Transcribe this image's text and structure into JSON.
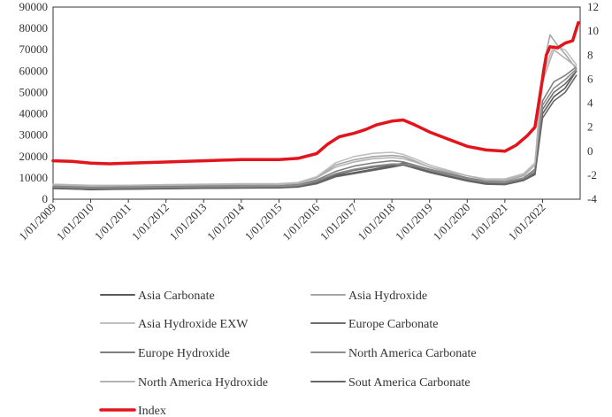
{
  "chart_data": {
    "type": "line",
    "title": "",
    "xlabel": "",
    "ylabel": "",
    "y2label": "",
    "x_ticks": [
      "1/01/2009",
      "1/01/2010",
      "1/01/2011",
      "1/01/2012",
      "1/01/2013",
      "1/01/2014",
      "1/01/2015",
      "1/01/2016",
      "1/01/2017",
      "1/01/2018",
      "1/01/2019",
      "1/01/2020",
      "1/01/2021",
      "1/01/2022"
    ],
    "y_left_ticks": [
      "0",
      "10000",
      "20000",
      "30000",
      "40000",
      "50000",
      "60000",
      "70000",
      "80000",
      "90000"
    ],
    "y_right_ticks": [
      "-4",
      "-2",
      "0",
      "2",
      "4",
      "6",
      "8",
      "10",
      "12"
    ],
    "ylim": [
      0,
      90000
    ],
    "y2lim": [
      -4,
      12
    ],
    "xlim": [
      2009.0,
      2023.0
    ],
    "grid": false,
    "legend_position": "bottom",
    "colors": {
      "index": "#e3141b",
      "axis": "#333333",
      "asia_carbonate": "#595959",
      "asia_hydroxide": "#a6a6a6",
      "asia_hydroxide_exw": "#bfbfbf",
      "europe_carbonate": "#6e6e6e",
      "europe_hydroxide": "#7f7f7f",
      "na_carbonate": "#8c8c8c",
      "na_hydroxide": "#b3b3b3",
      "sa_carbonate": "#666666"
    },
    "series": [
      {
        "name": "Asia Carbonate",
        "axis": "left",
        "color_key": "asia_carbonate",
        "x": [
          2009.0,
          2010.0,
          2011.0,
          2012.0,
          2013.0,
          2014.0,
          2015.0,
          2015.5,
          2016.0,
          2016.5,
          2017.0,
          2017.5,
          2018.0,
          2018.3,
          2018.6,
          2019.0,
          2019.5,
          2020.0,
          2020.5,
          2021.0,
          2021.5,
          2021.8,
          2022.0,
          2022.3,
          2022.6,
          2022.9
        ],
        "y": [
          5200,
          4500,
          4800,
          5000,
          5200,
          5300,
          5400,
          5800,
          7500,
          11000,
          12500,
          14000,
          15500,
          17000,
          15000,
          13000,
          11000,
          9000,
          7500,
          7000,
          9000,
          12000,
          40000,
          48000,
          52000,
          60000
        ]
      },
      {
        "name": "Asia Hydroxide",
        "axis": "left",
        "color_key": "asia_hydroxide",
        "x": [
          2009.0,
          2010.0,
          2011.0,
          2012.0,
          2013.0,
          2014.0,
          2015.0,
          2015.5,
          2016.0,
          2016.5,
          2017.0,
          2017.5,
          2018.0,
          2018.3,
          2018.6,
          2019.0,
          2019.5,
          2020.0,
          2020.5,
          2021.0,
          2021.5,
          2021.8,
          2022.0,
          2022.2,
          2022.4,
          2022.6,
          2022.9
        ],
        "y": [
          6500,
          6000,
          6200,
          6400,
          6600,
          6800,
          7000,
          7500,
          10000,
          16000,
          18500,
          20000,
          20500,
          20000,
          18000,
          15000,
          12500,
          10000,
          8500,
          8500,
          11000,
          16000,
          60000,
          77000,
          72000,
          68000,
          61000
        ]
      },
      {
        "name": "Asia Hydroxide EXW",
        "axis": "left",
        "color_key": "asia_hydroxide_exw",
        "x": [
          2009.0,
          2010.0,
          2011.0,
          2012.0,
          2013.0,
          2014.0,
          2015.0,
          2015.5,
          2016.0,
          2016.5,
          2017.0,
          2017.5,
          2018.0,
          2018.3,
          2018.6,
          2019.0,
          2019.5,
          2020.0,
          2020.5,
          2021.0,
          2021.5,
          2021.8,
          2022.0,
          2022.3,
          2022.6,
          2022.9
        ],
        "y": [
          7000,
          6500,
          6500,
          6800,
          7000,
          7200,
          7300,
          7800,
          10500,
          17000,
          20000,
          21500,
          22000,
          21000,
          19000,
          16000,
          13500,
          11000,
          9500,
          9500,
          12000,
          17000,
          58000,
          72000,
          70000,
          63000
        ]
      },
      {
        "name": "Europe Carbonate",
        "axis": "left",
        "color_key": "europe_carbonate",
        "x": [
          2009.0,
          2010.0,
          2011.0,
          2012.0,
          2013.0,
          2014.0,
          2015.0,
          2015.5,
          2016.0,
          2016.5,
          2017.0,
          2017.5,
          2018.0,
          2018.3,
          2018.6,
          2019.0,
          2019.5,
          2020.0,
          2020.5,
          2021.0,
          2021.5,
          2021.8,
          2022.0,
          2022.3,
          2022.6,
          2022.9
        ],
        "y": [
          5500,
          5000,
          5200,
          5400,
          5600,
          5700,
          5800,
          6200,
          8000,
          11500,
          13500,
          15000,
          16000,
          16500,
          15500,
          13500,
          11500,
          9500,
          8000,
          7500,
          9500,
          12500,
          42000,
          50000,
          54000,
          60000
        ]
      },
      {
        "name": "Europe Hydroxide",
        "axis": "left",
        "color_key": "europe_hydroxide",
        "x": [
          2009.0,
          2010.0,
          2011.0,
          2012.0,
          2013.0,
          2014.0,
          2015.0,
          2015.5,
          2016.0,
          2016.5,
          2017.0,
          2017.5,
          2018.0,
          2018.3,
          2018.6,
          2019.0,
          2019.5,
          2020.0,
          2020.5,
          2021.0,
          2021.5,
          2021.8,
          2022.0,
          2022.3,
          2022.6,
          2022.9
        ],
        "y": [
          6000,
          5500,
          5700,
          5900,
          6100,
          6200,
          6300,
          6800,
          9000,
          13000,
          15500,
          17000,
          18000,
          17500,
          16000,
          14000,
          12000,
          10000,
          8500,
          8000,
          10000,
          14000,
          46000,
          55000,
          58000,
          62000
        ]
      },
      {
        "name": "North America Carbonate",
        "axis": "left",
        "color_key": "na_carbonate",
        "x": [
          2009.0,
          2010.0,
          2011.0,
          2012.0,
          2013.0,
          2014.0,
          2015.0,
          2015.5,
          2016.0,
          2016.5,
          2017.0,
          2017.5,
          2018.0,
          2018.3,
          2018.6,
          2019.0,
          2019.5,
          2020.0,
          2020.5,
          2021.0,
          2021.5,
          2021.8,
          2022.0,
          2022.3,
          2022.6,
          2022.9
        ],
        "y": [
          5800,
          5200,
          5400,
          5600,
          5800,
          5900,
          6000,
          6500,
          8500,
          12000,
          14000,
          15500,
          16500,
          16500,
          15500,
          13500,
          11500,
          9500,
          8000,
          7800,
          9800,
          13000,
          44000,
          52000,
          56000,
          61000
        ]
      },
      {
        "name": "North America Hydroxide",
        "axis": "left",
        "color_key": "na_hydroxide",
        "x": [
          2009.0,
          2010.0,
          2011.0,
          2012.0,
          2013.0,
          2014.0,
          2015.0,
          2015.5,
          2016.0,
          2016.5,
          2017.0,
          2017.5,
          2018.0,
          2018.3,
          2018.6,
          2019.0,
          2019.5,
          2020.0,
          2020.5,
          2021.0,
          2021.5,
          2021.8,
          2022.0,
          2022.3,
          2022.6,
          2022.9
        ],
        "y": [
          6800,
          6200,
          6400,
          6600,
          6800,
          7000,
          7100,
          7600,
          10000,
          15000,
          17500,
          19000,
          19500,
          19000,
          17500,
          15000,
          13000,
          11000,
          9000,
          9000,
          11500,
          16000,
          55000,
          70000,
          66000,
          62000
        ]
      },
      {
        "name": "Sout America Carbonate",
        "axis": "left",
        "color_key": "sa_carbonate",
        "x": [
          2009.0,
          2010.0,
          2011.0,
          2012.0,
          2013.0,
          2014.0,
          2015.0,
          2015.5,
          2016.0,
          2016.5,
          2017.0,
          2017.5,
          2018.0,
          2018.3,
          2018.6,
          2019.0,
          2019.5,
          2020.0,
          2020.5,
          2021.0,
          2021.5,
          2021.8,
          2022.0,
          2022.3,
          2022.6,
          2022.9
        ],
        "y": [
          5000,
          4600,
          4700,
          4900,
          5100,
          5200,
          5300,
          5700,
          7200,
          10500,
          12000,
          13500,
          15000,
          16000,
          14500,
          12500,
          10500,
          8500,
          7000,
          6800,
          8800,
          11500,
          38000,
          46000,
          50000,
          58000
        ]
      },
      {
        "name": "Index",
        "axis": "right",
        "color_key": "index",
        "width": 3.5,
        "x": [
          2009.0,
          2009.5,
          2010.0,
          2010.5,
          2011.0,
          2011.5,
          2012.0,
          2012.5,
          2013.0,
          2013.5,
          2014.0,
          2014.5,
          2015.0,
          2015.5,
          2016.0,
          2016.3,
          2016.6,
          2017.0,
          2017.3,
          2017.6,
          2018.0,
          2018.3,
          2018.6,
          2019.0,
          2019.5,
          2020.0,
          2020.5,
          2021.0,
          2021.3,
          2021.6,
          2021.8,
          2022.0,
          2022.1,
          2022.2,
          2022.4,
          2022.6,
          2022.8,
          2022.95
        ],
        "y": [
          -0.8,
          -0.85,
          -1.0,
          -1.05,
          -1.0,
          -0.95,
          -0.9,
          -0.85,
          -0.8,
          -0.75,
          -0.7,
          -0.7,
          -0.7,
          -0.6,
          -0.2,
          0.6,
          1.2,
          1.5,
          1.8,
          2.2,
          2.5,
          2.6,
          2.2,
          1.6,
          1.0,
          0.4,
          0.1,
          0.0,
          0.5,
          1.3,
          2.0,
          6.0,
          8.0,
          8.7,
          8.6,
          9.0,
          9.2,
          10.7
        ]
      }
    ]
  }
}
